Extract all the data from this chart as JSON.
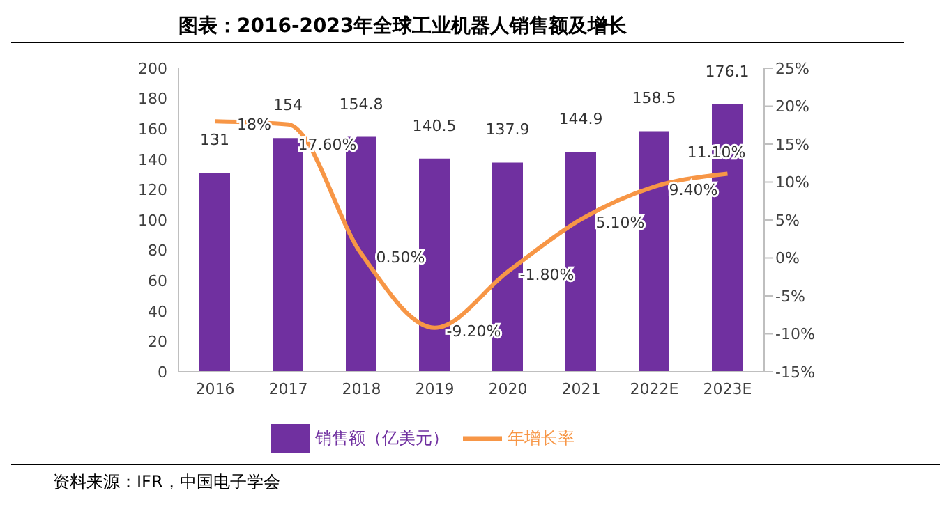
{
  "chart_data": {
    "type": "bar",
    "title": "图表：2016-2023年全球工业机器人销售额及增长",
    "categories": [
      "2016",
      "2017",
      "2018",
      "2019",
      "2020",
      "2021",
      "2022E",
      "2023E"
    ],
    "series": [
      {
        "name": "销售额（亿美元）",
        "color": "#7030a0",
        "values": [
          131,
          154,
          154.8,
          140.5,
          137.9,
          144.9,
          158.5,
          176.1
        ],
        "value_labels": [
          "131",
          "154",
          "154.8",
          "140.5",
          "137.9",
          "144.9",
          "158.5",
          "176.1"
        ]
      },
      {
        "name": "年增长率",
        "type": "line",
        "axis": "y2",
        "color": "#f79646",
        "values": [
          18,
          17.6,
          0.5,
          -9.2,
          -1.8,
          5.1,
          9.4,
          11.1
        ],
        "value_labels": [
          "18%",
          "17.60%",
          "0.50%",
          "-9.20%",
          "-1.80%",
          "5.10%",
          "9.40%",
          "11.10%"
        ]
      }
    ],
    "ylim": [
      0,
      200
    ],
    "yticks": [
      0,
      20,
      40,
      60,
      80,
      100,
      120,
      140,
      160,
      180,
      200
    ],
    "y2lim": [
      -15,
      25
    ],
    "y2ticks": [
      {
        "value": -15,
        "label": "-15%"
      },
      {
        "value": -10,
        "label": "-10%"
      },
      {
        "value": -5,
        "label": "-5%"
      },
      {
        "value": 0,
        "label": "0%"
      },
      {
        "value": 5,
        "label": "5%"
      },
      {
        "value": 10,
        "label": "10%"
      },
      {
        "value": 15,
        "label": "15%"
      },
      {
        "value": 20,
        "label": "20%"
      },
      {
        "value": 25,
        "label": "25%"
      }
    ],
    "grid": false,
    "legend": "bottom",
    "marker": "none",
    "line_style": "solid",
    "annotations": [
      "资料来源：IFR，中国电子学会"
    ]
  }
}
